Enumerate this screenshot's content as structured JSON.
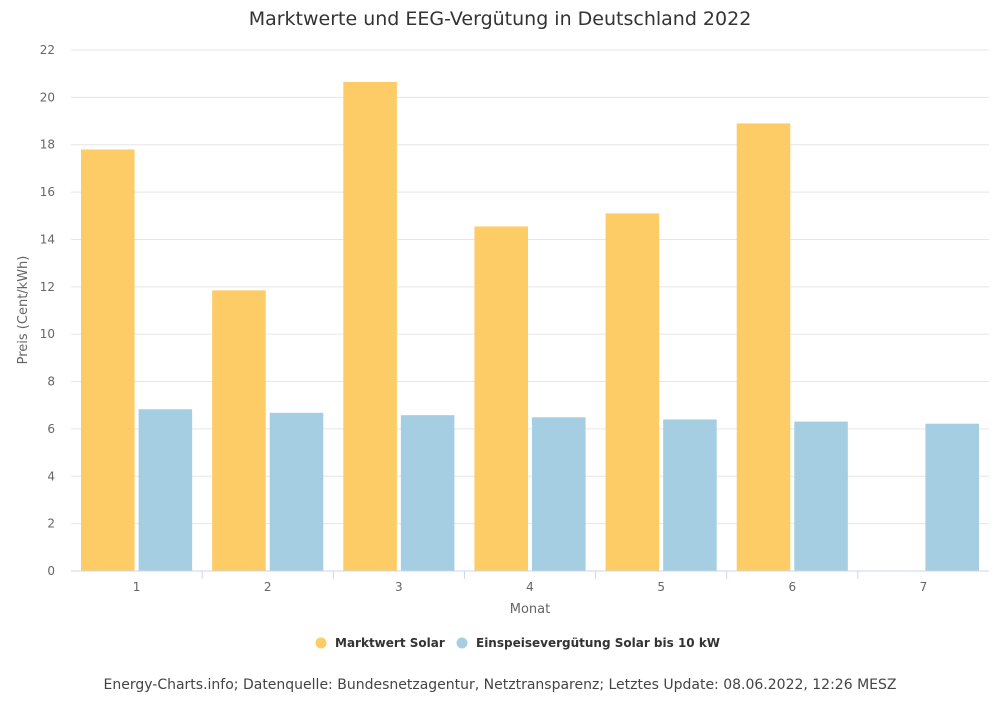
{
  "chart_data": {
    "type": "bar",
    "title": "Marktwerte und EEG-Vergütung in Deutschland 2022",
    "xlabel": "Monat",
    "ylabel": "Preis (Cent/kWh)",
    "categories": [
      "1",
      "2",
      "3",
      "4",
      "5",
      "6",
      "7"
    ],
    "ylim": [
      0,
      22
    ],
    "yticks": [
      0,
      2,
      4,
      6,
      8,
      10,
      12,
      14,
      16,
      18,
      20,
      22
    ],
    "grid": true,
    "legend_position": "bottom-center",
    "series": [
      {
        "name": "Marktwert Solar",
        "color": "#fecc66",
        "values": [
          17.8,
          11.85,
          20.65,
          14.55,
          15.1,
          18.9,
          null
        ]
      },
      {
        "name": "Einspeisevergütung Solar bis 10 kW",
        "color": "#a6cee3",
        "values": [
          6.83,
          6.68,
          6.58,
          6.49,
          6.4,
          6.31,
          6.22
        ]
      }
    ]
  },
  "source_text": "Energy-Charts.info; Datenquelle: Bundesnetzagentur, Netztransparenz; Letztes Update: 08.06.2022, 12:26 MESZ"
}
